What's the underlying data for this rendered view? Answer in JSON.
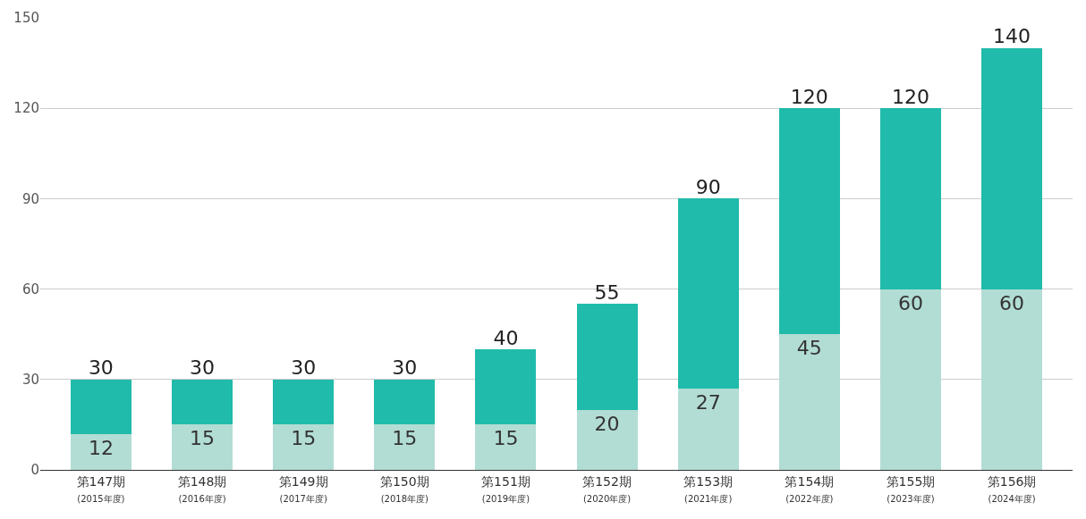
{
  "chart_data": {
    "type": "bar",
    "stacked": true,
    "categories": [
      "第147期\n(2015年度)",
      "第148期\n(2016年度)",
      "第149期\n(2017年度)",
      "第150期\n(2018年度)",
      "第151期\n(2019年度)",
      "第152期\n(2020年度)",
      "第153期\n(2021年度)",
      "第154期\n(2022年度)",
      "第155期\n(2023年度)",
      "第156期\n(2024年度)"
    ],
    "series": [
      {
        "color": "#b2ddd4",
        "values": [
          12,
          15,
          15,
          15,
          15,
          20,
          27,
          45,
          60,
          60
        ],
        "value_labels": [
          "12",
          "15",
          "15",
          "15",
          "15",
          "20",
          "27",
          "45",
          "60",
          "60"
        ]
      },
      {
        "color": "#20bbaa",
        "values": [
          18,
          15,
          15,
          15,
          25,
          35,
          63,
          75,
          60,
          80
        ]
      }
    ],
    "totals": [
      "30",
      "30",
      "30",
      "30",
      "40",
      "55",
      "90",
      "120",
      "120",
      "140"
    ],
    "ylim": [
      0,
      150
    ],
    "yticks": [
      0,
      30,
      60,
      90,
      120,
      150
    ],
    "grid": "y"
  }
}
